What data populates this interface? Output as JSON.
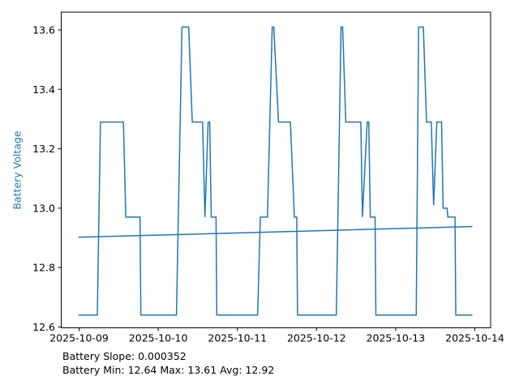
{
  "figure": {
    "ylabel": "Battery Voltage",
    "footer_lines": [
      "Battery Slope: 0.000352",
      "Battery Min: 12.64 Max: 13.61 Avg: 12.92"
    ]
  },
  "colors": {
    "series_line": "#1f77b4",
    "trend_line": "#1f77b4",
    "axis": "#000000",
    "tick_label": "#000000",
    "ylabel": "#1f77b4",
    "background": "#ffffff"
  },
  "chart_data": {
    "type": "line",
    "title": "",
    "xlabel": "",
    "ylabel": "Battery Voltage",
    "x_unit": "days since 2025-10-09 00:00",
    "xlim": [
      -0.226,
      5.2
    ],
    "ylim": [
      12.597,
      13.66
    ],
    "grid": false,
    "legend": null,
    "x_ticks": [
      {
        "t": 0,
        "label": "2025-10-09"
      },
      {
        "t": 1,
        "label": "2025-10-10"
      },
      {
        "t": 2,
        "label": "2025-10-11"
      },
      {
        "t": 3,
        "label": "2025-10-12"
      },
      {
        "t": 4,
        "label": "2025-10-13"
      },
      {
        "t": 5,
        "label": "2025-10-14"
      }
    ],
    "y_ticks": [
      {
        "v": 12.6,
        "label": "12.6"
      },
      {
        "v": 12.8,
        "label": "12.8"
      },
      {
        "v": 13.0,
        "label": "13.0"
      },
      {
        "v": 13.2,
        "label": "13.2"
      },
      {
        "v": 13.4,
        "label": "13.4"
      },
      {
        "v": 13.6,
        "label": "13.6"
      }
    ],
    "series": [
      {
        "name": "battery-voltage",
        "color": "#1f77b4",
        "width": 1.5,
        "points": [
          [
            -0.01,
            12.64
          ],
          [
            0.23,
            12.64
          ],
          [
            0.27,
            13.29
          ],
          [
            0.56,
            13.29
          ],
          [
            0.59,
            12.97
          ],
          [
            0.77,
            12.97
          ],
          [
            0.78,
            12.64
          ],
          [
            1.23,
            12.64
          ],
          [
            1.3,
            13.61
          ],
          [
            1.385,
            13.61
          ],
          [
            1.43,
            13.29
          ],
          [
            1.56,
            13.29
          ],
          [
            1.59,
            12.97
          ],
          [
            1.63,
            13.29
          ],
          [
            1.65,
            13.29
          ],
          [
            1.67,
            12.97
          ],
          [
            1.73,
            12.97
          ],
          [
            1.74,
            12.64
          ],
          [
            2.256,
            12.64
          ],
          [
            2.29,
            12.97
          ],
          [
            2.38,
            12.97
          ],
          [
            2.44,
            13.61
          ],
          [
            2.46,
            13.61
          ],
          [
            2.52,
            13.29
          ],
          [
            2.67,
            13.29
          ],
          [
            2.72,
            12.97
          ],
          [
            2.75,
            12.97
          ],
          [
            2.76,
            12.64
          ],
          [
            3.25,
            12.64
          ],
          [
            3.31,
            13.61
          ],
          [
            3.33,
            13.61
          ],
          [
            3.37,
            13.29
          ],
          [
            3.56,
            13.29
          ],
          [
            3.58,
            12.97
          ],
          [
            3.64,
            13.29
          ],
          [
            3.66,
            13.29
          ],
          [
            3.68,
            12.97
          ],
          [
            3.74,
            12.97
          ],
          [
            3.75,
            12.64
          ],
          [
            4.26,
            12.64
          ],
          [
            4.29,
            13.61
          ],
          [
            4.35,
            13.61
          ],
          [
            4.39,
            13.29
          ],
          [
            4.45,
            13.29
          ],
          [
            4.48,
            13.01
          ],
          [
            4.52,
            13.29
          ],
          [
            4.58,
            13.29
          ],
          [
            4.6,
            13.0
          ],
          [
            4.65,
            13.0
          ],
          [
            4.66,
            12.97
          ],
          [
            4.75,
            12.97
          ],
          [
            4.76,
            12.64
          ],
          [
            4.97,
            12.64
          ]
        ]
      },
      {
        "name": "battery-voltage-trend",
        "color": "#1f77b4",
        "width": 1.5,
        "points": [
          [
            -0.01,
            12.902
          ],
          [
            4.97,
            12.938
          ]
        ]
      }
    ],
    "annotations": {
      "slope": 0.000352,
      "min": 12.64,
      "max": 13.61,
      "avg": 12.92
    }
  }
}
